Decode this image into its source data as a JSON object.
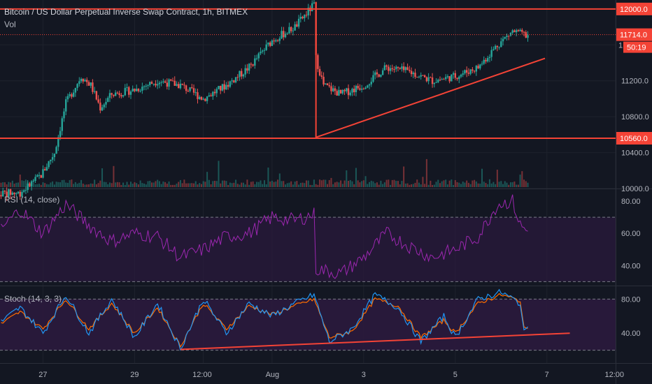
{
  "header": {
    "title": "Bitcoin / US Dollar Perpetual Inverse Swap Contract, 1h, BITMEX",
    "volume_label": "Vol"
  },
  "price_scale": {
    "ticks": [
      "10000.0",
      "10400.0",
      "10800.0",
      "11200.0"
    ],
    "tag_high": "12000.0",
    "tag_low": "10560.0",
    "tag_last": "11714.0",
    "tag_countdown": "50:19",
    "partial_tick": "1"
  },
  "rsi": {
    "label": "RSI (14, close)",
    "ticks": [
      "80.00",
      "60.00",
      "40.00"
    ]
  },
  "stoch": {
    "label": "Stoch (14, 3, 3)",
    "ticks": [
      "80.00",
      "40.00"
    ]
  },
  "time_axis": {
    "ticks": [
      "27",
      "29",
      "12:00",
      "Aug",
      "3",
      "5",
      "7",
      "12:00"
    ]
  },
  "colors": {
    "background": "#131722",
    "grid": "#1e222d",
    "up": "#26a69a",
    "down": "#ef5350",
    "drawing": "#f44336",
    "rsi_line": "#9c27b0",
    "stoch_k": "#2196f3",
    "stoch_d": "#ff6d00",
    "band_fill": "#2b1a3d"
  },
  "chart_data": [
    {
      "type": "candlestick",
      "title": "Bitcoin / US Dollar Perpetual Inverse Swap Contract, 1h, BITMEX",
      "x_range": [
        "2020-07-26 00:00",
        "2020-08-08 12:00"
      ],
      "ylim": [
        10000,
        12100
      ],
      "horizontal_levels": [
        12000,
        10560
      ],
      "last_price": 11714,
      "trendline": [
        {
          "x": "2020-08-01 23:00",
          "y": 10570
        },
        {
          "x": "2020-08-06 23:00",
          "y": 11450
        }
      ],
      "price_path": [
        {
          "x": "2020-07-26 00:00",
          "y": 9950
        },
        {
          "x": "2020-07-26 12:00",
          "y": 9950
        },
        {
          "x": "2020-07-26 23:00",
          "y": 10150
        },
        {
          "x": "2020-07-27 06:00",
          "y": 10400
        },
        {
          "x": "2020-07-27 12:00",
          "y": 10950
        },
        {
          "x": "2020-07-27 20:00",
          "y": 11250
        },
        {
          "x": "2020-07-28 01:00",
          "y": 11150
        },
        {
          "x": "2020-07-28 06:00",
          "y": 10900
        },
        {
          "x": "2020-07-28 12:00",
          "y": 11050
        },
        {
          "x": "2020-07-29 00:00",
          "y": 11100
        },
        {
          "x": "2020-07-29 12:00",
          "y": 11200
        },
        {
          "x": "2020-07-30 00:00",
          "y": 11150
        },
        {
          "x": "2020-07-30 12:00",
          "y": 11000
        },
        {
          "x": "2020-07-31 00:00",
          "y": 11150
        },
        {
          "x": "2020-07-31 12:00",
          "y": 11350
        },
        {
          "x": "2020-08-01 00:00",
          "y": 11650
        },
        {
          "x": "2020-08-01 12:00",
          "y": 11800
        },
        {
          "x": "2020-08-01 22:00",
          "y": 12050
        },
        {
          "x": "2020-08-01 23:00",
          "y": 11450
        },
        {
          "x": "2020-08-02 03:00",
          "y": 11150
        },
        {
          "x": "2020-08-02 12:00",
          "y": 11050
        },
        {
          "x": "2020-08-03 00:00",
          "y": 11150
        },
        {
          "x": "2020-08-03 12:00",
          "y": 11350
        },
        {
          "x": "2020-08-04 00:00",
          "y": 11300
        },
        {
          "x": "2020-08-04 12:00",
          "y": 11200
        },
        {
          "x": "2020-08-05 00:00",
          "y": 11250
        },
        {
          "x": "2020-08-05 12:00",
          "y": 11350
        },
        {
          "x": "2020-08-05 22:00",
          "y": 11600
        },
        {
          "x": "2020-08-06 06:00",
          "y": 11750
        },
        {
          "x": "2020-08-06 14:00",
          "y": 11700
        }
      ],
      "series": [
        {
          "name": "Vol",
          "type": "bar"
        }
      ]
    },
    {
      "type": "line",
      "title": "RSI (14, close)",
      "ylim": [
        28,
        87
      ],
      "bands": [
        70,
        30
      ],
      "series": [
        {
          "values": [
            {
              "x": "2020-07-26 00:00",
              "y": 60
            },
            {
              "x": "2020-07-26 12:00",
              "y": 75
            },
            {
              "x": "2020-07-27 00:00",
              "y": 60
            },
            {
              "x": "2020-07-27 12:00",
              "y": 78
            },
            {
              "x": "2020-07-28 00:00",
              "y": 65
            },
            {
              "x": "2020-07-28 12:00",
              "y": 55
            },
            {
              "x": "2020-07-29 00:00",
              "y": 60
            },
            {
              "x": "2020-07-29 12:00",
              "y": 58
            },
            {
              "x": "2020-07-30 00:00",
              "y": 45
            },
            {
              "x": "2020-07-30 12:00",
              "y": 50
            },
            {
              "x": "2020-07-31 00:00",
              "y": 58
            },
            {
              "x": "2020-07-31 12:00",
              "y": 60
            },
            {
              "x": "2020-08-01 00:00",
              "y": 70
            },
            {
              "x": "2020-08-01 12:00",
              "y": 68
            },
            {
              "x": "2020-08-01 22:00",
              "y": 72
            },
            {
              "x": "2020-08-01 23:00",
              "y": 38
            },
            {
              "x": "2020-08-02 12:00",
              "y": 35
            },
            {
              "x": "2020-08-03 00:00",
              "y": 45
            },
            {
              "x": "2020-08-03 12:00",
              "y": 60
            },
            {
              "x": "2020-08-04 00:00",
              "y": 52
            },
            {
              "x": "2020-08-04 12:00",
              "y": 45
            },
            {
              "x": "2020-08-05 00:00",
              "y": 50
            },
            {
              "x": "2020-08-05 12:00",
              "y": 58
            },
            {
              "x": "2020-08-05 22:00",
              "y": 78
            },
            {
              "x": "2020-08-06 06:00",
              "y": 80
            },
            {
              "x": "2020-08-06 10:00",
              "y": 65
            },
            {
              "x": "2020-08-06 14:00",
              "y": 61
            }
          ]
        }
      ]
    },
    {
      "type": "line",
      "title": "Stoch (14, 3, 3)",
      "ylim": [
        5,
        95
      ],
      "bands": [
        80,
        20
      ],
      "trendline": [
        {
          "x": "2020-07-30 00:00",
          "y": 21
        },
        {
          "x": "2020-08-07 12:00",
          "y": 40
        }
      ],
      "series": [
        {
          "values": [
            {
              "x": "2020-07-26 00:00",
              "y": 50
            },
            {
              "x": "2020-07-26 12:00",
              "y": 70
            },
            {
              "x": "2020-07-27 00:00",
              "y": 40
            },
            {
              "x": "2020-07-27 12:00",
              "y": 85
            },
            {
              "x": "2020-07-28 00:00",
              "y": 40
            },
            {
              "x": "2020-07-28 12:00",
              "y": 80
            },
            {
              "x": "2020-07-29 00:00",
              "y": 35
            },
            {
              "x": "2020-07-29 12:00",
              "y": 75
            },
            {
              "x": "2020-07-30 00:00",
              "y": 22
            },
            {
              "x": "2020-07-30 12:00",
              "y": 80
            },
            {
              "x": "2020-07-31 00:00",
              "y": 40
            },
            {
              "x": "2020-07-31 12:00",
              "y": 75
            },
            {
              "x": "2020-08-01 00:00",
              "y": 60
            },
            {
              "x": "2020-08-01 12:00",
              "y": 75
            },
            {
              "x": "2020-08-01 22:00",
              "y": 85
            },
            {
              "x": "2020-08-02 06:00",
              "y": 30
            },
            {
              "x": "2020-08-02 18:00",
              "y": 45
            },
            {
              "x": "2020-08-03 06:00",
              "y": 85
            },
            {
              "x": "2020-08-03 18:00",
              "y": 70
            },
            {
              "x": "2020-08-04 06:00",
              "y": 30
            },
            {
              "x": "2020-08-04 18:00",
              "y": 60
            },
            {
              "x": "2020-08-05 00:00",
              "y": 35
            },
            {
              "x": "2020-08-05 12:00",
              "y": 80
            },
            {
              "x": "2020-08-06 00:00",
              "y": 88
            },
            {
              "x": "2020-08-06 10:00",
              "y": 75
            },
            {
              "x": "2020-08-06 12:00",
              "y": 40
            },
            {
              "x": "2020-08-06 14:00",
              "y": 50
            }
          ]
        },
        {
          "values": [
            {
              "x": "2020-07-26 00:00",
              "y": 48
            },
            {
              "x": "2020-07-26 12:00",
              "y": 65
            },
            {
              "x": "2020-07-27 00:00",
              "y": 45
            },
            {
              "x": "2020-07-27 12:00",
              "y": 80
            },
            {
              "x": "2020-07-28 00:00",
              "y": 45
            },
            {
              "x": "2020-07-28 12:00",
              "y": 75
            },
            {
              "x": "2020-07-29 00:00",
              "y": 40
            },
            {
              "x": "2020-07-29 12:00",
              "y": 70
            },
            {
              "x": "2020-07-30 00:00",
              "y": 25
            },
            {
              "x": "2020-07-30 12:00",
              "y": 75
            },
            {
              "x": "2020-07-31 00:00",
              "y": 45
            },
            {
              "x": "2020-07-31 12:00",
              "y": 72
            },
            {
              "x": "2020-08-01 00:00",
              "y": 62
            },
            {
              "x": "2020-08-01 12:00",
              "y": 72
            },
            {
              "x": "2020-08-01 22:00",
              "y": 80
            },
            {
              "x": "2020-08-02 06:00",
              "y": 35
            },
            {
              "x": "2020-08-02 18:00",
              "y": 42
            },
            {
              "x": "2020-08-03 06:00",
              "y": 80
            },
            {
              "x": "2020-08-03 18:00",
              "y": 72
            },
            {
              "x": "2020-08-04 06:00",
              "y": 35
            },
            {
              "x": "2020-08-04 18:00",
              "y": 55
            },
            {
              "x": "2020-08-05 00:00",
              "y": 40
            },
            {
              "x": "2020-08-05 12:00",
              "y": 75
            },
            {
              "x": "2020-08-06 00:00",
              "y": 85
            },
            {
              "x": "2020-08-06 10:00",
              "y": 78
            },
            {
              "x": "2020-08-06 12:00",
              "y": 45
            },
            {
              "x": "2020-08-06 14:00",
              "y": 47
            }
          ]
        }
      ]
    }
  ]
}
